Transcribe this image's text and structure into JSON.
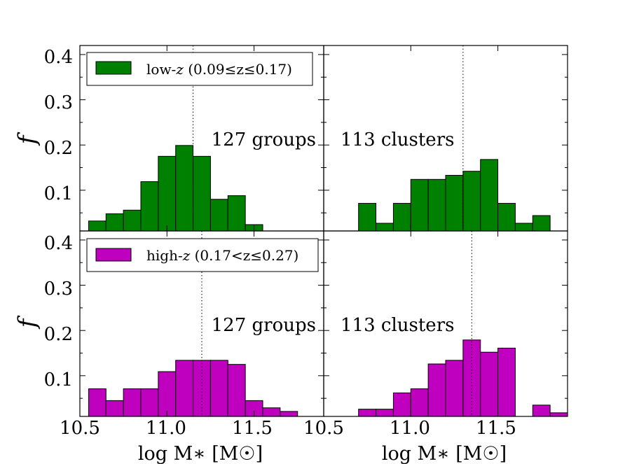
{
  "chart_data": {
    "type": "bar",
    "title": "",
    "xlabel": "log M∗ [M☉]",
    "ylabel": "f",
    "xlim": [
      10.5,
      11.9
    ],
    "ylim": [
      0.01,
      0.42
    ],
    "bin_width": 0.1,
    "x_ticks": [
      "10.5",
      "11.0",
      "11.5"
    ],
    "y_ticks": [
      "0.1",
      "0.2",
      "0.3",
      "0.4"
    ],
    "colors": {
      "low_z": "#008000",
      "high_z": "#bf00bf"
    },
    "panels": [
      {
        "id": "low-z-groups",
        "row": "low_z",
        "annotation": "127 groups",
        "median": 11.15,
        "bins": [
          {
            "x": 10.6,
            "value": 0.032
          },
          {
            "x": 10.7,
            "value": 0.048
          },
          {
            "x": 10.8,
            "value": 0.056
          },
          {
            "x": 10.9,
            "value": 0.119
          },
          {
            "x": 11.0,
            "value": 0.175
          },
          {
            "x": 11.1,
            "value": 0.199
          },
          {
            "x": 11.2,
            "value": 0.175
          },
          {
            "x": 11.3,
            "value": 0.08
          },
          {
            "x": 11.4,
            "value": 0.088
          },
          {
            "x": 11.5,
            "value": 0.024
          }
        ]
      },
      {
        "id": "low-z-clusters",
        "row": "low_z",
        "annotation": "113 clusters",
        "median": 11.3,
        "bins": [
          {
            "x": 10.75,
            "value": 0.071
          },
          {
            "x": 10.85,
            "value": 0.027
          },
          {
            "x": 10.95,
            "value": 0.071
          },
          {
            "x": 11.05,
            "value": 0.124
          },
          {
            "x": 11.15,
            "value": 0.124
          },
          {
            "x": 11.25,
            "value": 0.133
          },
          {
            "x": 11.35,
            "value": 0.142
          },
          {
            "x": 11.45,
            "value": 0.168
          },
          {
            "x": 11.55,
            "value": 0.071
          },
          {
            "x": 11.65,
            "value": 0.027
          },
          {
            "x": 11.75,
            "value": 0.044
          }
        ]
      },
      {
        "id": "high-z-groups",
        "row": "high_z",
        "annotation": "127 groups",
        "median": 11.2,
        "bins": [
          {
            "x": 10.6,
            "value": 0.071
          },
          {
            "x": 10.7,
            "value": 0.045
          },
          {
            "x": 10.8,
            "value": 0.071
          },
          {
            "x": 10.9,
            "value": 0.071
          },
          {
            "x": 11.0,
            "value": 0.109
          },
          {
            "x": 11.1,
            "value": 0.134
          },
          {
            "x": 11.2,
            "value": 0.134
          },
          {
            "x": 11.3,
            "value": 0.134
          },
          {
            "x": 11.4,
            "value": 0.125
          },
          {
            "x": 11.5,
            "value": 0.045
          },
          {
            "x": 11.6,
            "value": 0.029
          },
          {
            "x": 11.7,
            "value": 0.021
          }
        ]
      },
      {
        "id": "high-z-clusters",
        "row": "high_z",
        "annotation": "113 clusters",
        "median": 11.35,
        "bins": [
          {
            "x": 10.75,
            "value": 0.026
          },
          {
            "x": 10.85,
            "value": 0.026
          },
          {
            "x": 10.95,
            "value": 0.062
          },
          {
            "x": 11.05,
            "value": 0.071
          },
          {
            "x": 11.15,
            "value": 0.126
          },
          {
            "x": 11.25,
            "value": 0.134
          },
          {
            "x": 11.35,
            "value": 0.179
          },
          {
            "x": 11.45,
            "value": 0.152
          },
          {
            "x": 11.55,
            "value": 0.161
          },
          {
            "x": 11.65,
            "value": 0.0
          },
          {
            "x": 11.75,
            "value": 0.035
          },
          {
            "x": 11.85,
            "value": 0.018
          }
        ]
      }
    ],
    "legends": {
      "low_z": {
        "prefix": "low-",
        "var": "z",
        "range": " (0.09≤z≤0.17)"
      },
      "high_z": {
        "prefix": "high-",
        "var": "z",
        "range": " (0.17<z≤0.27)"
      }
    }
  }
}
